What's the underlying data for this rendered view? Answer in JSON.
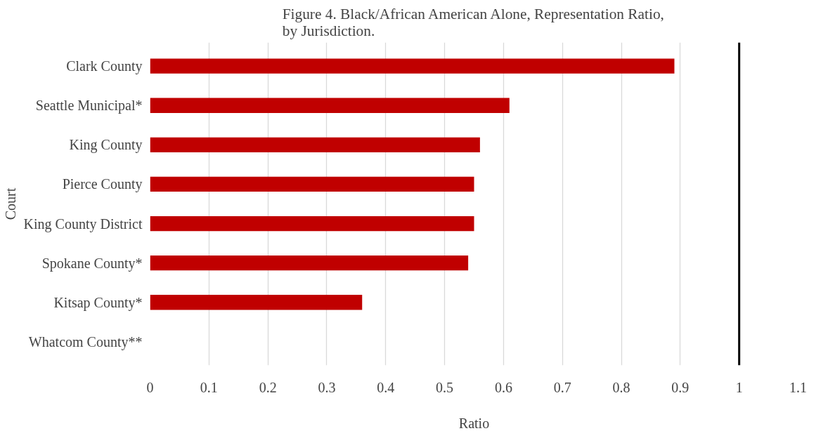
{
  "chart_data": {
    "type": "bar",
    "orientation": "horizontal",
    "title": "Figure 4. Black/African American Alone, Representation Ratio, by Jurisdiction.",
    "xlabel": "Ratio",
    "ylabel": "Court",
    "categories": [
      "Clark County",
      "Seattle Municipal*",
      "King County",
      "Pierce County",
      "King County District",
      "Spokane County*",
      "Kitsap County*",
      "Whatcom County**"
    ],
    "values": [
      0.89,
      0.61,
      0.56,
      0.55,
      0.55,
      0.54,
      0.36,
      null
    ],
    "color": "#c00000",
    "xlim": [
      0,
      1.1
    ],
    "xticks": [
      0,
      0.1,
      0.2,
      0.3,
      0.4,
      0.5,
      0.6,
      0.7,
      0.8,
      0.9,
      1,
      1.1
    ],
    "grid": "x",
    "ref_lines": [
      {
        "axis": "x",
        "value": 1,
        "color": "#000000"
      }
    ]
  }
}
